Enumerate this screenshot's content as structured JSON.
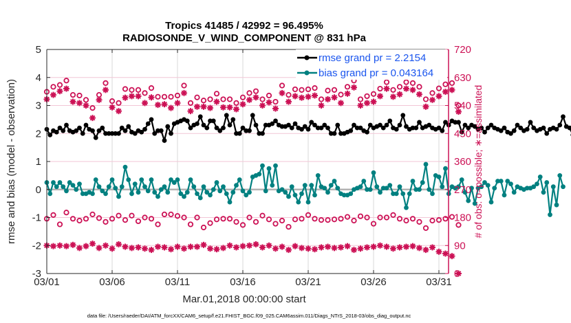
{
  "chart_data": {
    "type": "line",
    "title": "Tropics 41485 / 42992 = 96.495%",
    "subtitle": "RADIOSONDE_V_WIND_COMPONENT @ 831 hPa",
    "xlabel": "Mar.01,2018 00:00:00 start",
    "ylabel": "rmse and bias (model - observation)",
    "y2label": "# of obs: o=possible; ∗=assimilated",
    "footer": "data file: /Users/raeder/DAI/ATM_forcXX/CAM6_setup/f.e21.FHIST_BGC.f09_025.CAM6assim.011/Diags_NTrS_2018-03/obs_diag_output.nc",
    "xlim": [
      0,
      30.5
    ],
    "ylim": [
      -3,
      5
    ],
    "y2lim": [
      0,
      720
    ],
    "x_ticks": [
      0,
      5,
      10,
      15,
      20,
      25,
      30
    ],
    "x_tick_labels": [
      "03/01",
      "03/06",
      "03/11",
      "03/16",
      "03/21",
      "03/26",
      "03/31"
    ],
    "y_ticks": [
      "5",
      "4",
      "3",
      "2",
      "1",
      "0",
      "-1",
      "-2",
      "-3"
    ],
    "y2_ticks": [
      "720",
      "630",
      "540",
      "450",
      "360",
      "270",
      "180",
      "90",
      "0"
    ],
    "grid": true,
    "legend_position": "top-right",
    "legend": [
      {
        "label": "rmse grand pr = 2.2154",
        "color": "#000000"
      },
      {
        "label": "bias grand pr = 0.043164",
        "color": "#008080"
      }
    ],
    "colors": {
      "rmse": "#000000",
      "bias": "#008080",
      "obs": "#cc1155",
      "zero_line": "#b3b3b3",
      "grid": "#d9d9d9",
      "obs_grid": "#f2c6d6"
    },
    "series": [
      {
        "name": "rmse",
        "x_step_days": 0.25,
        "values": [
          2.15,
          1.95,
          2.1,
          2.05,
          2.2,
          2.1,
          2.3,
          2.1,
          2.05,
          2.1,
          2.2,
          2.0,
          2.3,
          2.15,
          2.1,
          1.85,
          2.1,
          2.2,
          2.0,
          2.0,
          2.0,
          2.0,
          2.0,
          2.2,
          2.1,
          2.25,
          2.05,
          2.0,
          2.1,
          2.05,
          2.15,
          2.35,
          2.5,
          2.0,
          2.1,
          2.1,
          1.75,
          2.25,
          2.0,
          2.35,
          2.4,
          2.45,
          2.5,
          2.45,
          2.2,
          2.3,
          2.35,
          2.6,
          2.3,
          2.2,
          2.45,
          2.45,
          2.2,
          2.1,
          2.2,
          2.65,
          2.3,
          2.5,
          2.0,
          2.0,
          2.2,
          2.1,
          2.1,
          2.65,
          2.3,
          2.0,
          2.0,
          2.3,
          2.3,
          2.35,
          2.45,
          2.3,
          2.25,
          2.25,
          2.3,
          2.2,
          2.35,
          2.2,
          2.15,
          2.25,
          2.15,
          2.4,
          2.3,
          2.2,
          2.2,
          2.3,
          2.2,
          2.0,
          2.0,
          2.3,
          2.0,
          2.0,
          2.05,
          2.1,
          2.3,
          2.2,
          2.2,
          2.1,
          2.05,
          2.3,
          2.2,
          2.25,
          2.3,
          2.2,
          2.3,
          2.45,
          2.2,
          2.15,
          2.3,
          2.65,
          2.25,
          2.15,
          2.2,
          2.2,
          2.4,
          2.2,
          2.25,
          2.3,
          2.2,
          2.15,
          2.2,
          2.1,
          2.4,
          2.3,
          2.45,
          2.4,
          2.4,
          2.05,
          2.3,
          2.2,
          2.3,
          2.25,
          2.15,
          2.2,
          2.05,
          2.2,
          2.3,
          2.2,
          2.15,
          2.1,
          2.2,
          2.05,
          2.0,
          2.1,
          2.3,
          2.2,
          2.1,
          2.15,
          2.4,
          2.2,
          2.1,
          2.15,
          2.2,
          2.0,
          2.15,
          2.2,
          2.15,
          2.3,
          2.6,
          2.25,
          2.2,
          1.95,
          2.15,
          2.2,
          2.3,
          2.2,
          2.25,
          2.3,
          2.35,
          2.4,
          2.45
        ]
      },
      {
        "name": "bias",
        "x_step_days": 0.25,
        "values": [
          0.25,
          -0.15,
          0.25,
          0.1,
          0.25,
          0.1,
          -0.05,
          0.25,
          0.15,
          0.0,
          0.2,
          -0.15,
          -0.15,
          -0.1,
          -0.15,
          0.35,
          0.1,
          -0.05,
          -0.15,
          0.1,
          0.35,
          0.05,
          -0.25,
          0.1,
          0.8,
          0.35,
          -0.15,
          0.2,
          -0.1,
          0.35,
          0.1,
          -0.05,
          0.35,
          -0.1,
          -0.25,
          0.0,
          0.1,
          -0.1,
          0.35,
          0.25,
          0.35,
          -0.15,
          -0.25,
          -0.1,
          0.35,
          0.1,
          -0.15,
          -0.3,
          0.1,
          -0.1,
          -0.2,
          0.0,
          0.25,
          -0.05,
          0.1,
          -0.15,
          -0.45,
          -0.1,
          0.15,
          0.35,
          -0.05,
          -0.2,
          -0.1,
          0.45,
          0.5,
          0.55,
          0.85,
          -0.05,
          0.75,
          0.15,
          0.85,
          -0.05,
          0.0,
          -0.1,
          -0.25,
          0.1,
          -0.2,
          -0.45,
          -0.15,
          0.15,
          -0.45,
          0.15,
          -0.2,
          0.5,
          0.1,
          0.05,
          -0.1,
          0.15,
          0.3,
          0.05,
          -0.15,
          -0.2,
          -0.2,
          -0.15,
          0.0,
          0.05,
          0.1,
          0.3,
          0.0,
          0.0,
          0.6,
          0.1,
          -0.1,
          0.05,
          0.05,
          0.15,
          -0.15,
          -0.15,
          0.1,
          -0.15,
          -0.65,
          -0.15,
          0.3,
          0.0,
          0.0,
          0.25,
          0.9,
          0.0,
          -0.15,
          0.5,
          0.45,
          0.1,
          0.75,
          -0.15,
          0.1,
          0.05,
          0.1,
          0.35,
          -0.1,
          -0.4,
          0.05,
          -0.5,
          0.05,
          0.1,
          0.25,
          0.15,
          -0.45,
          0.05,
          0.3,
          0.3,
          -0.2,
          0.3,
          0.2,
          -0.1,
          0.1,
          0.05,
          0.0,
          0.05,
          0.05,
          0.1,
          0.2,
          0.45,
          -0.1,
          0.25,
          -0.9,
          0.1,
          -0.55,
          0.5,
          0.1
        ]
      },
      {
        "name": "obs_possible_upper",
        "x_step_days": 0.5,
        "values": [
          584,
          600,
          606,
          620,
          574,
          572,
          558,
          532,
          574,
          612,
          554,
          548,
          593,
          590,
          590,
          580,
          596,
          568,
          568,
          568,
          572,
          604,
          548,
          566,
          556,
          560,
          578,
          560,
          560,
          548,
          566,
          580,
          586,
          560,
          572,
          552,
          604,
          574,
          592,
          590,
          592,
          596,
          560,
          588,
          590,
          575,
          600,
          620,
          560,
          570,
          577,
          594,
          615,
          590,
          600,
          615,
          612,
          600,
          560,
          580,
          595,
          608,
          612,
          540
        ]
      },
      {
        "name": "obs_assimilated_upper",
        "x_step_days": 0.5,
        "values": [
          560,
          574,
          586,
          594,
          552,
          548,
          540,
          500,
          558,
          590,
          534,
          522,
          565,
          570,
          570,
          548,
          566,
          542,
          544,
          532,
          548,
          580,
          522,
          536,
          536,
          532,
          552,
          534,
          534,
          528,
          544,
          558,
          566,
          540,
          550,
          530,
          580,
          552,
          570,
          565,
          568,
          572,
          540,
          560,
          566,
          548,
          578,
          598,
          540,
          548,
          552,
          570,
          594,
          568,
          576,
          594,
          590,
          576,
          536,
          558,
          570,
          584,
          590,
          520
        ]
      },
      {
        "name": "obs_possible_lower",
        "x_step_days": 0.5,
        "values": [
          176,
          188,
          158,
          196,
          176,
          170,
          176,
          190,
          178,
          166,
          176,
          186,
          172,
          186,
          168,
          180,
          176,
          158,
          190,
          190,
          185,
          180,
          158,
          180,
          148,
          162,
          174,
          176,
          176,
          166,
          156,
          180,
          166,
          186,
          174,
          160,
          170,
          150,
          174,
          176,
          188,
          176,
          172,
          172,
          174,
          176,
          182,
          170,
          184,
          180,
          160,
          180,
          180,
          188,
          176,
          170,
          176,
          166,
          146,
          170,
          172,
          176,
          182,
          156
        ]
      },
      {
        "name": "obs_assimilated_lower",
        "x_step_days": 0.5,
        "values": [
          90,
          88,
          90,
          88,
          92,
          82,
          88,
          96,
          82,
          90,
          80,
          94,
          86,
          82,
          84,
          80,
          76,
          86,
          84,
          78,
          86,
          80,
          86,
          86,
          92,
          80,
          78,
          82,
          90,
          84,
          88,
          90,
          94,
          84,
          90,
          80,
          86,
          76,
          88,
          82,
          80,
          78,
          84,
          86,
          82,
          84,
          88,
          76,
          80,
          84,
          86,
          90,
          86,
          80,
          84,
          86,
          88,
          82,
          76,
          84,
          70,
          64,
          56,
          0
        ]
      }
    ]
  }
}
